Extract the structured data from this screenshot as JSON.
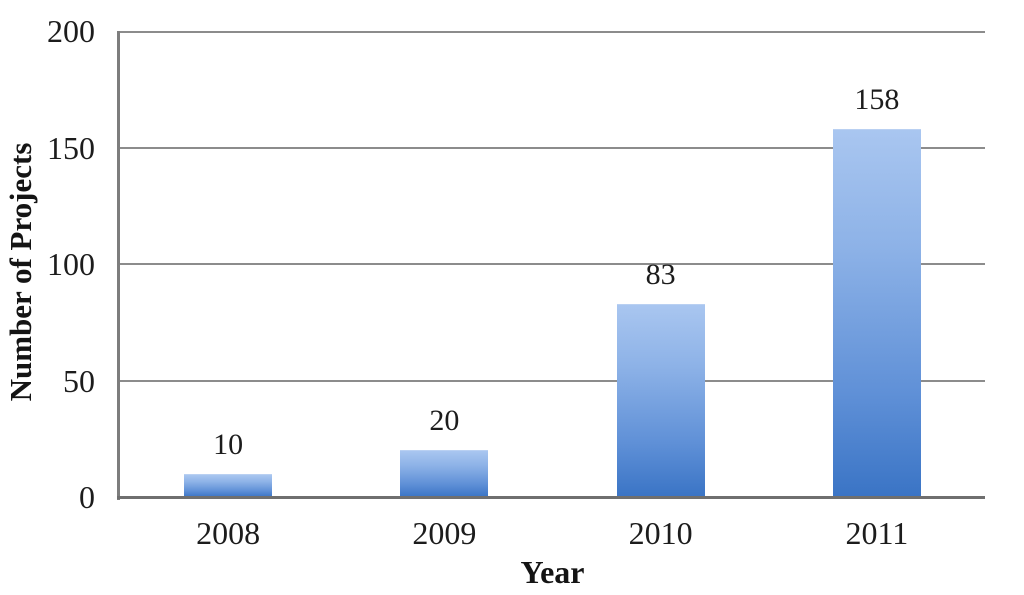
{
  "chart_data": {
    "type": "bar",
    "title": "",
    "categories": [
      "2008",
      "2009",
      "2010",
      "2011"
    ],
    "values": [
      10,
      20,
      83,
      158
    ],
    "data_labels": [
      "10",
      "20",
      "83",
      "158"
    ],
    "xlabel": "Year",
    "ylabel": "Number of Projects",
    "ylim": [
      0,
      200
    ],
    "yticks": [
      0,
      50,
      100,
      150,
      200
    ],
    "grid": true,
    "legend": "none",
    "colors": {
      "bar_gradient_top": "#a9c6f0",
      "bar_gradient_bottom": "#3a74c5",
      "gridline": "#8c8c8c",
      "axis_line": "#6f6f6f",
      "text": "#1c1c1c",
      "background": "#ffffff"
    }
  }
}
